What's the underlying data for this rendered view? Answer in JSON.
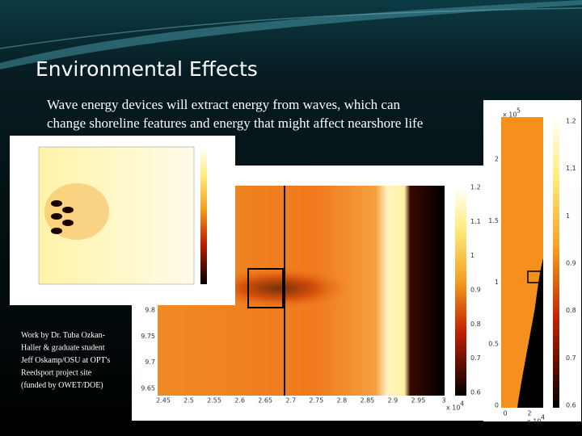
{
  "title": "Environmental Effects",
  "body": [
    "Wave energy devices will extract energy from waves, which can",
    "change shoreline features and energy that might affect nearshore life"
  ],
  "caption": [
    "Work by Dr. Tuba Ozkan-",
    "Haller & graduate student",
    "Jeff Oskamp/OSU at OPT's",
    "Reedsport project site",
    "(funded by OWET/DOE)"
  ],
  "figures": {
    "main": {
      "xticks": [
        2.45,
        2.5,
        2.55,
        2.6,
        2.65,
        2.7,
        2.75,
        2.8,
        2.85,
        2.9,
        2.95,
        3
      ],
      "yticks": [
        9.8,
        9.75,
        9.7,
        9.65
      ],
      "colorbar": [
        1.2,
        1.1,
        1,
        0.9,
        0.8,
        0.7,
        0.6
      ],
      "x_exponent": {
        "base": "x 10",
        "power": "4"
      }
    },
    "side": {
      "xticks": [
        0,
        2
      ],
      "yticks": [
        2,
        1.5,
        1,
        0.5,
        0
      ],
      "colorbar": [
        1.2,
        1.1,
        1,
        0.9,
        0.8,
        0.7,
        0.6
      ],
      "y_exponent": {
        "base": "x 10",
        "power": "5"
      },
      "x_exponent": {
        "base": "x 10",
        "power": "4"
      }
    }
  }
}
